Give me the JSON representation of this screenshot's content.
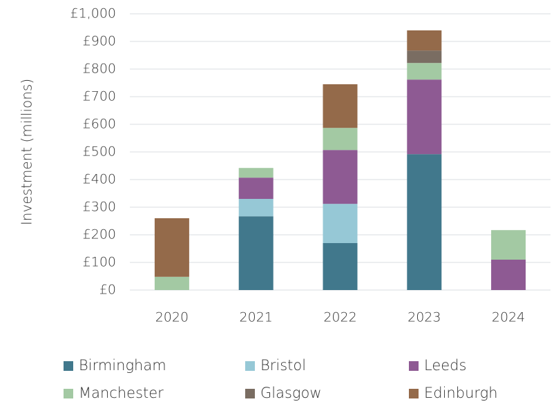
{
  "chart_data": {
    "type": "stacked_bar",
    "y_label": "Investment (millions)",
    "categories": [
      "2020",
      "2021",
      "2022",
      "2023",
      "2024"
    ],
    "series": [
      {
        "name": "Birmingham",
        "color": "#41788c",
        "values": [
          null,
          267,
          170,
          492,
          null
        ]
      },
      {
        "name": "Bristol",
        "color": "#96c8d6",
        "values": [
          null,
          63,
          142,
          null,
          null
        ]
      },
      {
        "name": "Leeds",
        "color": "#8e5a93",
        "values": [
          null,
          77,
          195,
          270,
          110
        ]
      },
      {
        "name": "Manchester",
        "color": "#a3c9a3",
        "values": [
          48,
          35,
          80,
          60,
          107
        ]
      },
      {
        "name": "Glasgow",
        "color": "#7a6d62",
        "values": [
          null,
          null,
          null,
          45,
          null
        ]
      },
      {
        "name": "Edinburgh",
        "color": "#946a4a",
        "values": [
          212,
          null,
          158,
          73,
          null
        ]
      }
    ],
    "ylim": [
      0,
      1000
    ],
    "yticks": [
      {
        "value": 0,
        "label": "£0"
      },
      {
        "value": 100,
        "label": "£100"
      },
      {
        "value": 200,
        "label": "£200"
      },
      {
        "value": 300,
        "label": "£300"
      },
      {
        "value": 400,
        "label": "£400"
      },
      {
        "value": 500,
        "label": "£500"
      },
      {
        "value": 600,
        "label": "£600"
      },
      {
        "value": 700,
        "label": "£700"
      },
      {
        "value": 800,
        "label": "£800"
      },
      {
        "value": 900,
        "label": "£900"
      },
      {
        "value": 1000,
        "label": "£1,000"
      }
    ],
    "grid": true
  }
}
